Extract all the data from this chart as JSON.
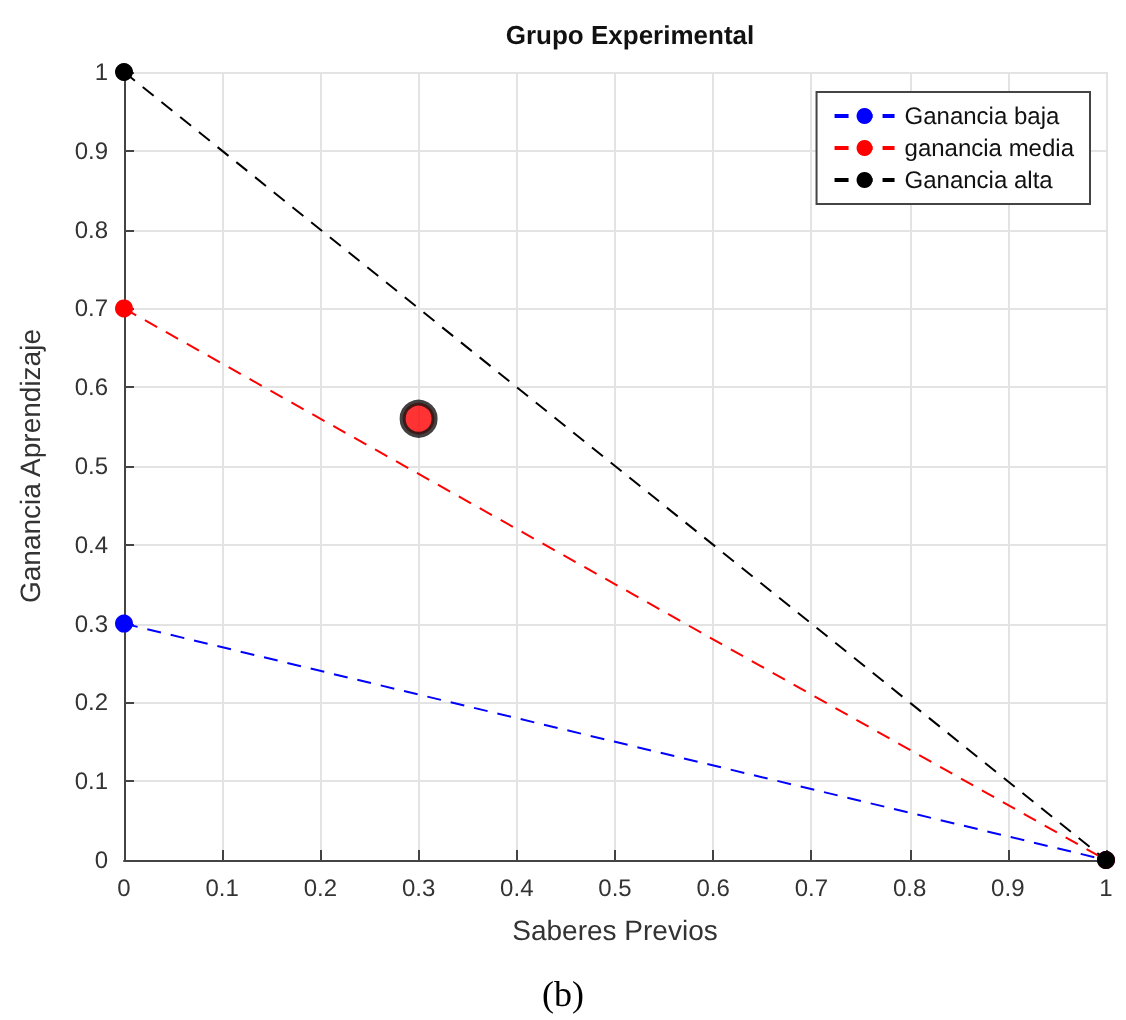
{
  "chart_data": {
    "type": "line",
    "title": "Grupo Experimental",
    "xlabel": "Saberes Previos",
    "ylabel": "Ganancia Aprendizaje",
    "annotations": [
      "(b)"
    ],
    "series": [
      {
        "name": "Ganancia baja",
        "color": "#0000ff",
        "x": [
          0,
          1
        ],
        "values": [
          0.3,
          0
        ]
      },
      {
        "name": "ganancia media",
        "color": "#ff0000",
        "x": [
          0,
          1
        ],
        "values": [
          0.7,
          0
        ]
      },
      {
        "name": "Ganancia alta",
        "color": "#000000",
        "x": [
          0,
          1
        ],
        "values": [
          1,
          0
        ]
      },
      {
        "type": "scatter",
        "color": "#ff0000",
        "x": [
          0.3
        ],
        "values": [
          0.56
        ]
      }
    ],
    "xlim": [
      0,
      1
    ],
    "xticks": [
      0,
      0.1,
      0.2,
      0.3,
      0.4,
      0.5,
      0.6,
      0.7,
      0.8,
      0.9,
      1
    ],
    "ylim": [
      0,
      1
    ],
    "yticks": [
      0,
      0.1,
      0.2,
      0.3,
      0.4,
      0.5,
      0.6,
      0.7,
      0.8,
      0.9,
      1
    ],
    "grid": true,
    "legend": "top right",
    "marker": "circle",
    "line_style": "dashed"
  }
}
